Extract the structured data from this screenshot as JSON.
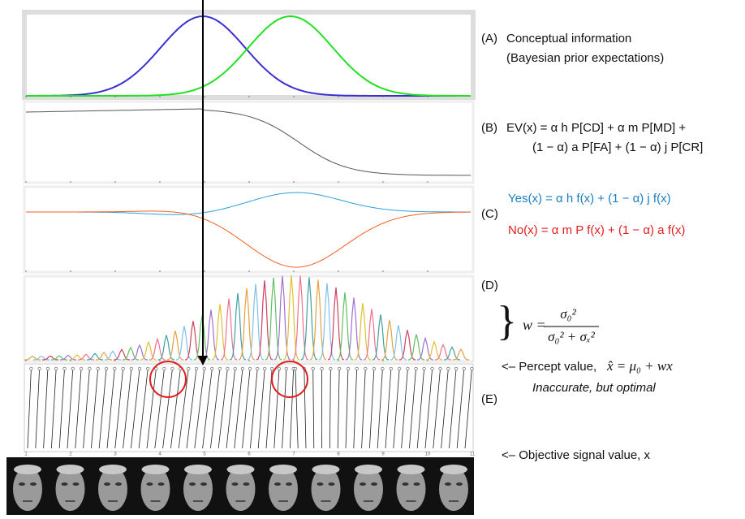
{
  "panel_a": {
    "label": "(A)",
    "line1": "Conceptual information",
    "line2": "(Bayesian prior expectations)"
  },
  "panel_b": {
    "label": "(B)",
    "line1": "EV(x)  =  α h P[CD]   +   α m P[MD]   +",
    "line2": "(1 − α) a P[FA]   +   (1 − α) j P[CR]"
  },
  "panel_c": {
    "label": "(C)",
    "yes": "Yes(x)  =  α h f(x)  + (1 − α) j f(x)",
    "no": "No(x)  =   α m P f(x) +  (1 − α) a f(x)"
  },
  "panel_d": {
    "label": "(D)",
    "brace": "}",
    "lhs": "w =",
    "numerator": "σ₀²",
    "denominator": "σ₀² + σₓ²"
  },
  "percept": {
    "text": "<– Percept value,",
    "formula": "x̂ = μ₀ + wx",
    "note": "Inaccurate, but optimal"
  },
  "panel_e": {
    "label": "(E)",
    "axis_labels": [
      "1",
      "2",
      "3",
      "4",
      "5",
      "6",
      "7",
      "8",
      "9",
      "10",
      "11"
    ]
  },
  "objective": {
    "text": "<– Objective signal value, x"
  }
}
